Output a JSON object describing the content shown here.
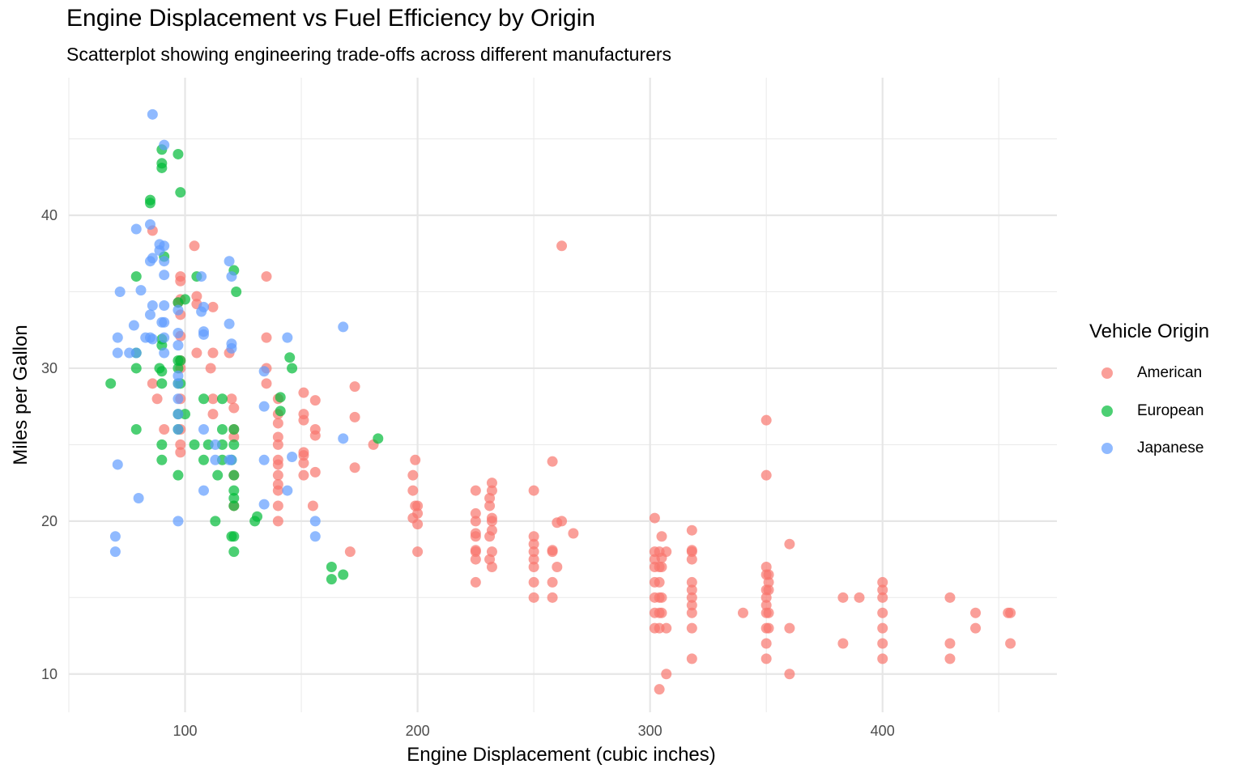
{
  "chart_data": {
    "type": "scatter",
    "title": "Engine Displacement vs Fuel Efficiency by Origin",
    "subtitle": "Scatterplot showing engineering trade-offs across different manufacturers",
    "xlabel": "Engine Displacement (cubic inches)",
    "ylabel": "Miles per Gallon",
    "xlim": [
      50,
      475
    ],
    "ylim": [
      7.5,
      49
    ],
    "xticks": [
      100,
      200,
      300,
      400
    ],
    "yticks": [
      10,
      20,
      30,
      40
    ],
    "grid": true,
    "legend_title": "Vehicle Origin",
    "legend_position": "right",
    "series": [
      {
        "name": "American",
        "color": "#F8766D",
        "points": [
          [
            86,
            39
          ],
          [
            98,
            36
          ],
          [
            98,
            35.7
          ],
          [
            98,
            34.5
          ],
          [
            97,
            34.3
          ],
          [
            105,
            34.7
          ],
          [
            105,
            34.2
          ],
          [
            98,
            33.5
          ],
          [
            112,
            34
          ],
          [
            98,
            32.1
          ],
          [
            135,
            36
          ],
          [
            135,
            32
          ],
          [
            104,
            38
          ],
          [
            105,
            31
          ],
          [
            112,
            31
          ],
          [
            119,
            31
          ],
          [
            98,
            30.5
          ],
          [
            135,
            30
          ],
          [
            98,
            30
          ],
          [
            111,
            30
          ],
          [
            135,
            29
          ],
          [
            86,
            29
          ],
          [
            88,
            28
          ],
          [
            98,
            28
          ],
          [
            112,
            28
          ],
          [
            120,
            28
          ],
          [
            140,
            28
          ],
          [
            151,
            28.4
          ],
          [
            156,
            27.9
          ],
          [
            173,
            28.8
          ],
          [
            112,
            27
          ],
          [
            121,
            27.4
          ],
          [
            140,
            27
          ],
          [
            151,
            27
          ],
          [
            151,
            26.6
          ],
          [
            173,
            26.8
          ],
          [
            91,
            26
          ],
          [
            98,
            26
          ],
          [
            121,
            26
          ],
          [
            140,
            26.4
          ],
          [
            156,
            26
          ],
          [
            156,
            25.6
          ],
          [
            121,
            25.5
          ],
          [
            140,
            25.5
          ],
          [
            140,
            25
          ],
          [
            98,
            25
          ],
          [
            98,
            24.5
          ],
          [
            151,
            24.5
          ],
          [
            151,
            24.3
          ],
          [
            140,
            24
          ],
          [
            181,
            25
          ],
          [
            173,
            23.5
          ],
          [
            140,
            23.7
          ],
          [
            140,
            23
          ],
          [
            151,
            23.8
          ],
          [
            151,
            23
          ],
          [
            156,
            23.2
          ],
          [
            121,
            23
          ],
          [
            199,
            24
          ],
          [
            198,
            23
          ],
          [
            140,
            22.4
          ],
          [
            140,
            22
          ],
          [
            198,
            22
          ],
          [
            225,
            22
          ],
          [
            232,
            22.5
          ],
          [
            232,
            22
          ],
          [
            250,
            22
          ],
          [
            258,
            23.9
          ],
          [
            121,
            21
          ],
          [
            140,
            21
          ],
          [
            155,
            21
          ],
          [
            199,
            21
          ],
          [
            200,
            21
          ],
          [
            231,
            21.5
          ],
          [
            231,
            21
          ],
          [
            140,
            20
          ],
          [
            198,
            20.2
          ],
          [
            200,
            20.5
          ],
          [
            200,
            19.8
          ],
          [
            225,
            20
          ],
          [
            225,
            20.5
          ],
          [
            232,
            20.2
          ],
          [
            232,
            20
          ],
          [
            260,
            19.9
          ],
          [
            262,
            20
          ],
          [
            225,
            19
          ],
          [
            225,
            19.2
          ],
          [
            231,
            19
          ],
          [
            232,
            19.4
          ],
          [
            250,
            19
          ],
          [
            250,
            18.5
          ],
          [
            258,
            18.1
          ],
          [
            258,
            18
          ],
          [
            267,
            19.2
          ],
          [
            200,
            18
          ],
          [
            225,
            18
          ],
          [
            225,
            18.1
          ],
          [
            232,
            18
          ],
          [
            250,
            18
          ],
          [
            250,
            17.5
          ],
          [
            171,
            18
          ],
          [
            225,
            17.5
          ],
          [
            231,
            17.5
          ],
          [
            250,
            17
          ],
          [
            260,
            17
          ],
          [
            225,
            16
          ],
          [
            250,
            16
          ],
          [
            250,
            15
          ],
          [
            258,
            16
          ],
          [
            258,
            15
          ],
          [
            232,
            17
          ],
          [
            262,
            38
          ],
          [
            302,
            20.2
          ],
          [
            302,
            18
          ],
          [
            302,
            17.5
          ],
          [
            302,
            17
          ],
          [
            302,
            16
          ],
          [
            302,
            15
          ],
          [
            302,
            14
          ],
          [
            302,
            13
          ],
          [
            304,
            18
          ],
          [
            304,
            17
          ],
          [
            304,
            16
          ],
          [
            304,
            15
          ],
          [
            304,
            14
          ],
          [
            304,
            13
          ],
          [
            305,
            19
          ],
          [
            305,
            17.6
          ],
          [
            305,
            17
          ],
          [
            305,
            15
          ],
          [
            305,
            14
          ],
          [
            307,
            18
          ],
          [
            307,
            13
          ],
          [
            307,
            10
          ],
          [
            304,
            9
          ],
          [
            318,
            19.4
          ],
          [
            318,
            18.1
          ],
          [
            318,
            18
          ],
          [
            318,
            17.5
          ],
          [
            318,
            16
          ],
          [
            318,
            15.5
          ],
          [
            318,
            15
          ],
          [
            318,
            14.5
          ],
          [
            318,
            14
          ],
          [
            318,
            13
          ],
          [
            318,
            11
          ],
          [
            340,
            14
          ],
          [
            350,
            26.6
          ],
          [
            350,
            23
          ],
          [
            350,
            17
          ],
          [
            350,
            16.5
          ],
          [
            350,
            15.5
          ],
          [
            350,
            15
          ],
          [
            350,
            14.5
          ],
          [
            350,
            14
          ],
          [
            350,
            13
          ],
          [
            350,
            12
          ],
          [
            350,
            11
          ],
          [
            351,
            16.5
          ],
          [
            351,
            16
          ],
          [
            351,
            15.5
          ],
          [
            351,
            14
          ],
          [
            351,
            13
          ],
          [
            360,
            18.5
          ],
          [
            360,
            13
          ],
          [
            360,
            10
          ],
          [
            383,
            15
          ],
          [
            383,
            12
          ],
          [
            390,
            15
          ],
          [
            400,
            16
          ],
          [
            400,
            15.5
          ],
          [
            400,
            15
          ],
          [
            400,
            14
          ],
          [
            400,
            13
          ],
          [
            400,
            12
          ],
          [
            400,
            11
          ],
          [
            429,
            15
          ],
          [
            429,
            12
          ],
          [
            429,
            11
          ],
          [
            440,
            14
          ],
          [
            440,
            13
          ],
          [
            454,
            14
          ],
          [
            455,
            14
          ],
          [
            455,
            12
          ]
        ]
      },
      {
        "name": "European",
        "color": "#00BA38",
        "points": [
          [
            90,
            44.3
          ],
          [
            90,
            43.4
          ],
          [
            90,
            43.1
          ],
          [
            97,
            44
          ],
          [
            85,
            41
          ],
          [
            85,
            40.8
          ],
          [
            98,
            41.5
          ],
          [
            91,
            37.3
          ],
          [
            79,
            36
          ],
          [
            105,
            36
          ],
          [
            121,
            36.4
          ],
          [
            100,
            34.5
          ],
          [
            97,
            34.3
          ],
          [
            122,
            35
          ],
          [
            90,
            31.9
          ],
          [
            90,
            31.5
          ],
          [
            97,
            30.5
          ],
          [
            98,
            30.5
          ],
          [
            89,
            30
          ],
          [
            97,
            30
          ],
          [
            146,
            30
          ],
          [
            145,
            30.7
          ],
          [
            68,
            29
          ],
          [
            79,
            30
          ],
          [
            79,
            31
          ],
          [
            90,
            29
          ],
          [
            90,
            29.8
          ],
          [
            97,
            29
          ],
          [
            98,
            29
          ],
          [
            141,
            28.1
          ],
          [
            108,
            28
          ],
          [
            116,
            28
          ],
          [
            141,
            27.2
          ],
          [
            100,
            27
          ],
          [
            97,
            27
          ],
          [
            79,
            26
          ],
          [
            97,
            26
          ],
          [
            116,
            26
          ],
          [
            121,
            26
          ],
          [
            90,
            25
          ],
          [
            104,
            25
          ],
          [
            110,
            25
          ],
          [
            116,
            25
          ],
          [
            121,
            25
          ],
          [
            97,
            23
          ],
          [
            90,
            24
          ],
          [
            108,
            24
          ],
          [
            116,
            24
          ],
          [
            120,
            24
          ],
          [
            121,
            23
          ],
          [
            114,
            23
          ],
          [
            121,
            22
          ],
          [
            121,
            21.5
          ],
          [
            121,
            21
          ],
          [
            183,
            25.4
          ],
          [
            130,
            20
          ],
          [
            131,
            20.3
          ],
          [
            113,
            20
          ],
          [
            120,
            19
          ],
          [
            121,
            19
          ],
          [
            121,
            18
          ],
          [
            163,
            17
          ],
          [
            168,
            16.5
          ],
          [
            163,
            16.2
          ]
        ]
      },
      {
        "name": "Japanese",
        "color": "#619CFF",
        "points": [
          [
            86,
            46.6
          ],
          [
            91,
            44.6
          ],
          [
            85,
            39.4
          ],
          [
            79,
            39.1
          ],
          [
            85,
            37
          ],
          [
            86,
            37.2
          ],
          [
            89,
            37.7
          ],
          [
            89,
            38.1
          ],
          [
            91,
            38
          ],
          [
            91,
            37
          ],
          [
            91,
            36.1
          ],
          [
            107,
            36
          ],
          [
            119,
            37
          ],
          [
            120,
            36
          ],
          [
            72,
            35
          ],
          [
            81,
            35.1
          ],
          [
            86,
            34.1
          ],
          [
            91,
            34.1
          ],
          [
            97,
            33.8
          ],
          [
            107,
            33.7
          ],
          [
            108,
            34
          ],
          [
            78,
            32.8
          ],
          [
            85,
            33.5
          ],
          [
            90,
            33
          ],
          [
            91,
            33
          ],
          [
            119,
            32.9
          ],
          [
            168,
            32.7
          ],
          [
            97,
            32.3
          ],
          [
            108,
            32.4
          ],
          [
            108,
            32.2
          ],
          [
            144,
            32
          ],
          [
            71,
            32
          ],
          [
            83,
            32
          ],
          [
            85,
            32
          ],
          [
            86,
            31.9
          ],
          [
            91,
            32
          ],
          [
            71,
            31
          ],
          [
            76,
            31
          ],
          [
            79,
            31
          ],
          [
            91,
            31
          ],
          [
            97,
            31.5
          ],
          [
            120,
            31.6
          ],
          [
            120,
            31.3
          ],
          [
            134,
            29.8
          ],
          [
            97,
            29.5
          ],
          [
            97,
            29
          ],
          [
            97,
            28
          ],
          [
            134,
            27.5
          ],
          [
            97,
            27
          ],
          [
            108,
            26
          ],
          [
            168,
            25.4
          ],
          [
            113,
            25
          ],
          [
            71,
            23.7
          ],
          [
            113,
            24
          ],
          [
            119,
            24
          ],
          [
            120,
            24
          ],
          [
            134,
            24
          ],
          [
            146,
            24.2
          ],
          [
            97,
            26
          ],
          [
            97,
            20
          ],
          [
            80,
            21.5
          ],
          [
            108,
            22
          ],
          [
            144,
            22
          ],
          [
            134,
            21.1
          ],
          [
            156,
            20
          ],
          [
            156,
            19
          ],
          [
            70,
            19
          ],
          [
            70,
            18
          ]
        ]
      }
    ]
  }
}
